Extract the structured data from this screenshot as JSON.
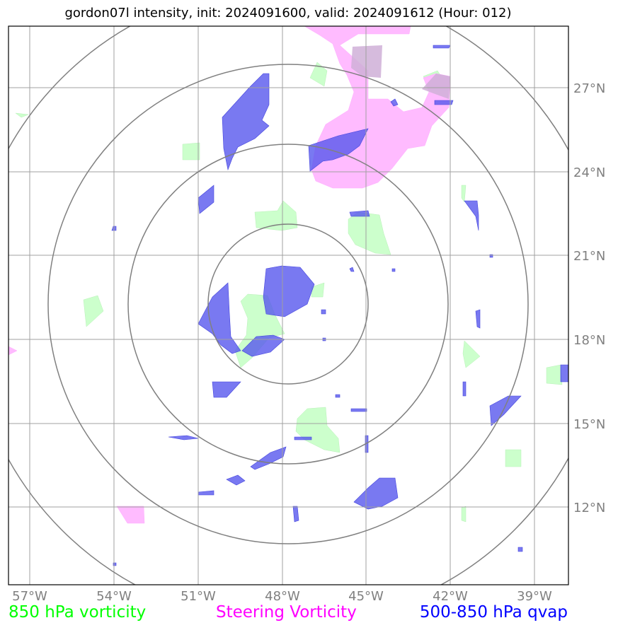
{
  "title": "gordon07l intensity, init: 2024091600, valid: 2024091612 (Hour: 012)",
  "legend": {
    "vort850": {
      "label": "850 hPa vorticity",
      "color": "#00ff00"
    },
    "steering": {
      "label": "Steering Vorticity",
      "color": "#ff00ff"
    },
    "qvap": {
      "label": "500-850 hPa qvap",
      "color": "#0000ff"
    }
  },
  "axes": {
    "lon_ticks": [
      "57°W",
      "54°W",
      "51°W",
      "48°W",
      "45°W",
      "42°W",
      "39°W"
    ],
    "lat_ticks": [
      "27°N",
      "24°N",
      "21°N",
      "18°N",
      "15°N",
      "12°N"
    ]
  },
  "colors": {
    "vort850_fill": "#ccffcc",
    "steering_fill": "#ffaaff",
    "qvap_fill": "#5555ee",
    "grid": "#a0a0a0",
    "range_rings": "#808080",
    "axis_text": "#808080"
  },
  "storm_center": {
    "lon": -48.0,
    "lat": 19.4
  },
  "range_rings_count": 4
}
